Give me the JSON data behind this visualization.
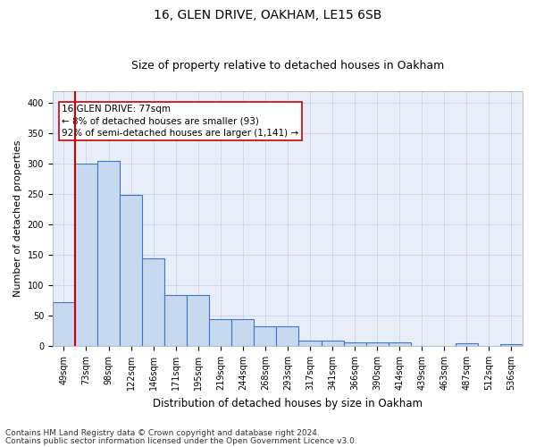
{
  "title": "16, GLEN DRIVE, OAKHAM, LE15 6SB",
  "subtitle": "Size of property relative to detached houses in Oakham",
  "xlabel": "Distribution of detached houses by size in Oakham",
  "ylabel": "Number of detached properties",
  "bar_labels": [
    "49sqm",
    "73sqm",
    "98sqm",
    "122sqm",
    "146sqm",
    "171sqm",
    "195sqm",
    "219sqm",
    "244sqm",
    "268sqm",
    "293sqm",
    "317sqm",
    "341sqm",
    "366sqm",
    "390sqm",
    "414sqm",
    "439sqm",
    "463sqm",
    "487sqm",
    "512sqm",
    "536sqm"
  ],
  "bar_values": [
    72,
    300,
    304,
    249,
    144,
    84,
    84,
    44,
    44,
    32,
    32,
    9,
    9,
    6,
    6,
    6,
    0,
    0,
    4,
    0,
    3
  ],
  "bar_color": "#c6d9f0",
  "bar_edge_color": "#4472c4",
  "bar_edge_width": 0.8,
  "marker_color": "#cc0000",
  "annotation_text": "16 GLEN DRIVE: 77sqm\n← 8% of detached houses are smaller (93)\n92% of semi-detached houses are larger (1,141) →",
  "annotation_box_color": "#ffffff",
  "annotation_box_edge_color": "#cc0000",
  "ylim": [
    0,
    420
  ],
  "yticks": [
    0,
    50,
    100,
    150,
    200,
    250,
    300,
    350,
    400
  ],
  "grid_color": "#d0d8e8",
  "bg_color": "#e8eef7",
  "footnote1": "Contains HM Land Registry data © Crown copyright and database right 2024.",
  "footnote2": "Contains public sector information licensed under the Open Government Licence v3.0.",
  "title_fontsize": 10,
  "subtitle_fontsize": 9,
  "xlabel_fontsize": 8.5,
  "ylabel_fontsize": 8,
  "tick_fontsize": 7,
  "annotation_fontsize": 7.5,
  "footnote_fontsize": 6.5
}
